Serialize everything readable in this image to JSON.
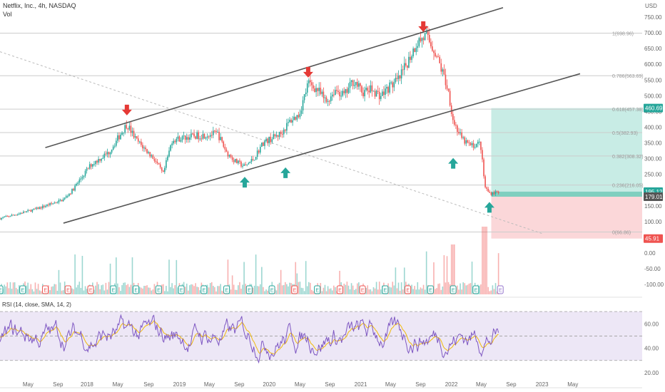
{
  "header": {
    "title": "Netflix, Inc., 4h, NASDAQ",
    "volume_label": "Vol",
    "currency": "USD"
  },
  "rsi": {
    "label": "RSI (14, close, SMA, 14, 2)",
    "ticks": [
      "60.00",
      "40.00",
      "20.00"
    ],
    "upper_band": 70,
    "lower_band": 30,
    "mid": 50
  },
  "colors": {
    "bull": "#26a69a",
    "bear": "#ef5350",
    "rsi_line": "#7e57c2",
    "rsi_ma": "#f0b90b",
    "channel": "#555555",
    "profit_zone": "#c8ece5",
    "loss_zone": "#fbd7d9",
    "fib_line": "#cccccc",
    "rsi_band": "#ede7f6"
  },
  "chart_data": {
    "type": "candlestick",
    "title": "Netflix, Inc., 4h, NASDAQ",
    "ylabel": "USD",
    "ylim": [
      -125,
      800
    ],
    "y_ticks": [
      "750.00",
      "700.00",
      "650.00",
      "600.00",
      "550.00",
      "500.00",
      "450.00",
      "400.00",
      "350.00",
      "300.00",
      "250.00",
      "200.00",
      "150.00",
      "100.00",
      "50.00",
      "0.00",
      "-50.00",
      "-100.00"
    ],
    "x_ticks": [
      "May",
      "Sep",
      "2018",
      "May",
      "Sep",
      "2019",
      "May",
      "Sep",
      "2020",
      "May",
      "Sep",
      "2021",
      "May",
      "Sep",
      "2022",
      "May",
      "Sep",
      "2023",
      "May"
    ],
    "price_path": [
      {
        "x": 0,
        "price": 110
      },
      {
        "x": 4,
        "price": 140
      },
      {
        "x": 7,
        "price": 170
      },
      {
        "x": 8,
        "price": 200
      },
      {
        "x": 10,
        "price": 280
      },
      {
        "x": 12,
        "price": 320
      },
      {
        "x": 14,
        "price": 410
      },
      {
        "x": 15,
        "price": 360
      },
      {
        "x": 17,
        "price": 300
      },
      {
        "x": 18,
        "price": 250
      },
      {
        "x": 19,
        "price": 360
      },
      {
        "x": 21,
        "price": 370
      },
      {
        "x": 24,
        "price": 380
      },
      {
        "x": 25,
        "price": 320
      },
      {
        "x": 26,
        "price": 290
      },
      {
        "x": 27,
        "price": 275
      },
      {
        "x": 28,
        "price": 300
      },
      {
        "x": 29,
        "price": 350
      },
      {
        "x": 31,
        "price": 380
      },
      {
        "x": 32,
        "price": 420
      },
      {
        "x": 33,
        "price": 440
      },
      {
        "x": 34,
        "price": 540
      },
      {
        "x": 35,
        "price": 520
      },
      {
        "x": 36,
        "price": 480
      },
      {
        "x": 37,
        "price": 520
      },
      {
        "x": 38,
        "price": 500
      },
      {
        "x": 39,
        "price": 550
      },
      {
        "x": 40,
        "price": 510
      },
      {
        "x": 41,
        "price": 520
      },
      {
        "x": 42,
        "price": 500
      },
      {
        "x": 43,
        "price": 530
      },
      {
        "x": 44,
        "price": 550
      },
      {
        "x": 45,
        "price": 610
      },
      {
        "x": 46,
        "price": 670
      },
      {
        "x": 47,
        "price": 690
      },
      {
        "x": 48,
        "price": 640
      },
      {
        "x": 49,
        "price": 560
      },
      {
        "x": 49.5,
        "price": 510
      },
      {
        "x": 50,
        "price": 420
      },
      {
        "x": 51,
        "price": 360
      },
      {
        "x": 52,
        "price": 340
      },
      {
        "x": 53,
        "price": 350
      },
      {
        "x": 53.5,
        "price": 210
      },
      {
        "x": 54,
        "price": 190
      },
      {
        "x": 55,
        "price": 195
      }
    ],
    "annotations": {
      "fib_levels": [
        {
          "label": "1(698.96)",
          "value": 698.96
        },
        {
          "label": "0.786(563.69)",
          "value": 563.69
        },
        {
          "label": "0.618(457.38)",
          "value": 457.38
        },
        {
          "label": "0.5(382.93)",
          "value": 382.93
        },
        {
          "label": "0.382(308.32)",
          "value": 308.32
        },
        {
          "label": "0.236(216.05)",
          "value": 216.05
        },
        {
          "label": "0(66.86)",
          "value": 66.86
        }
      ],
      "price_tags": [
        {
          "label": "460.69",
          "value": 460.69,
          "role": "target"
        },
        {
          "label": "195.12",
          "value": 195.12,
          "role": "last"
        },
        {
          "label": "179.01",
          "value": 179.01,
          "role": "entry"
        },
        {
          "label": "45.91",
          "value": 45.91,
          "role": "stop"
        }
      ],
      "position": {
        "entry": 179.01,
        "target": 460.69,
        "stop": 45.91
      },
      "arrows": [
        {
          "dir": "down",
          "x": 14,
          "price": 440
        },
        {
          "dir": "down",
          "x": 34,
          "price": 560
        },
        {
          "dir": "down",
          "x": 46.7,
          "price": 705
        },
        {
          "dir": "up",
          "x": 27,
          "price": 240
        },
        {
          "dir": "up",
          "x": 31.5,
          "price": 270
        },
        {
          "dir": "up",
          "x": 50,
          "price": 300
        },
        {
          "dir": "up",
          "x": 54,
          "price": 160
        }
      ],
      "channel_lines": [
        {
          "from": [
            5,
            335
          ],
          "to": [
            55.5,
            780
          ]
        },
        {
          "from": [
            7,
            95
          ],
          "to": [
            64,
            570
          ]
        }
      ],
      "earnings_markers": [
        {
          "x": 0,
          "type": "E"
        },
        {
          "x": 2.5,
          "type": "E"
        },
        {
          "x": 5,
          "type": "D"
        },
        {
          "x": 7.5,
          "type": "D"
        },
        {
          "x": 10,
          "type": "D"
        },
        {
          "x": 12.5,
          "type": "E"
        },
        {
          "x": 15,
          "type": "E"
        },
        {
          "x": 17.5,
          "type": "E"
        },
        {
          "x": 20,
          "type": "E"
        },
        {
          "x": 22.5,
          "type": "E"
        },
        {
          "x": 25,
          "type": "E"
        },
        {
          "x": 27.5,
          "type": "E"
        },
        {
          "x": 30,
          "type": "E"
        },
        {
          "x": 32.5,
          "type": "D"
        },
        {
          "x": 35,
          "type": "E"
        },
        {
          "x": 37.5,
          "type": "D"
        },
        {
          "x": 40,
          "type": "D"
        },
        {
          "x": 42.5,
          "type": "E"
        },
        {
          "x": 45,
          "type": "D"
        },
        {
          "x": 47.5,
          "type": "E"
        },
        {
          "x": 50,
          "type": "E"
        },
        {
          "x": 52.5,
          "type": "E"
        },
        {
          "x": 55.2,
          "type": "F"
        }
      ]
    }
  }
}
